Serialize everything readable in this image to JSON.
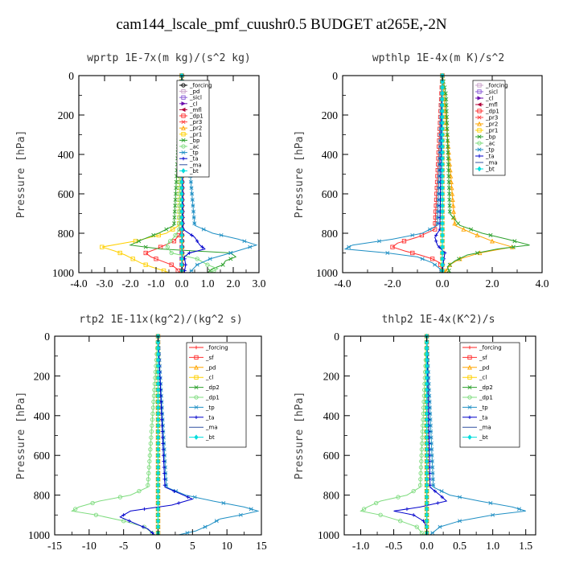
{
  "figure_title": "cam144_lscale_pmf_cuushr0.5  BUDGET at265E,-2N",
  "chart_data": [
    {
      "type": "line",
      "title": "wprtp  1E-7x(m kg)/(s^2 kg)",
      "ylabel": "Pressure [hPa]",
      "xlabel": "",
      "xlim": [
        -4.0,
        3.0
      ],
      "ylim": [
        1000,
        0
      ],
      "xticks": [
        -4.0,
        -3.0,
        -2.0,
        -1.0,
        0.0,
        1.0,
        2.0,
        3.0
      ],
      "xtick_labels": [
        "-4.0",
        "-3.0",
        "-2.0",
        "-1.0",
        "0.0",
        "1.0",
        "2.0",
        "3.0"
      ],
      "yticks": [
        0,
        200,
        400,
        600,
        800,
        1000
      ],
      "ytick_labels": [
        "0",
        "200",
        "400",
        "600",
        "800",
        "1000"
      ],
      "legend_position": "top-right",
      "series": [
        {
          "name": "_forcing",
          "color": "#000000",
          "marker": "o",
          "p": [
            0,
            1000
          ],
          "x": [
            0.02,
            0.02
          ]
        },
        {
          "name": "_pd",
          "color": "#c8a2c8",
          "marker": "s",
          "p": [
            0,
            1000
          ],
          "x": [
            0.0,
            0.0
          ]
        },
        {
          "name": "_sicl",
          "color": "#8a5bd6",
          "marker": "s",
          "p": [
            0,
            1000
          ],
          "x": [
            0.0,
            0.0
          ]
        },
        {
          "name": "_cl",
          "color": "#6a0dad",
          "marker": ">",
          "p": [
            0,
            1000
          ],
          "x": [
            0.0,
            0.0
          ]
        },
        {
          "name": "_mfl",
          "color": "#b0003a",
          "marker": "<",
          "p": [
            0,
            1000
          ],
          "x": [
            0.0,
            0.0
          ]
        },
        {
          "name": "_dp1",
          "color": "#ff3030",
          "marker": "s",
          "p": [
            0,
            760,
            800,
            840,
            880,
            900,
            920,
            940,
            960,
            980,
            1000
          ],
          "x": [
            0.0,
            0.0,
            -0.05,
            -0.3,
            -1.0,
            -1.4,
            -1.2,
            -0.8,
            -0.4,
            -0.2,
            -0.1
          ]
        },
        {
          "name": "_pr3",
          "color": "#ff4040",
          "marker": "x",
          "p": [
            0,
            1000
          ],
          "x": [
            0.0,
            0.0
          ]
        },
        {
          "name": "_pr2",
          "color": "#ffa500",
          "marker": "^",
          "p": [
            0,
            1000
          ],
          "x": [
            0.0,
            0.0
          ]
        },
        {
          "name": "_pr1",
          "color": "#ffd000",
          "marker": "s",
          "p": [
            0,
            760,
            800,
            840,
            870,
            890,
            910,
            930,
            950,
            970,
            990,
            1000
          ],
          "x": [
            0.0,
            -0.1,
            -0.6,
            -1.8,
            -3.1,
            -2.6,
            -2.2,
            -1.9,
            -1.6,
            -1.2,
            -0.7,
            -0.5
          ]
        },
        {
          "name": "_bp",
          "color": "#2ca02c",
          "marker": "x",
          "p": [
            0,
            760,
            800,
            830,
            860,
            880,
            900,
            920,
            940,
            960,
            980,
            1000
          ],
          "x": [
            0.0,
            -0.3,
            -0.9,
            -1.5,
            -2.0,
            -0.8,
            1.9,
            2.1,
            1.7,
            1.6,
            1.2,
            1.0
          ]
        },
        {
          "name": "_ac",
          "color": "#7fdc7f",
          "marker": "o",
          "p": [
            0,
            780,
            820,
            860,
            900,
            930,
            960,
            980,
            1000
          ],
          "x": [
            0.0,
            -0.1,
            -0.3,
            -0.6,
            -0.4,
            0.6,
            1.0,
            1.4,
            1.1
          ]
        },
        {
          "name": "_tp",
          "color": "#1f8fc4",
          "marker": "*",
          "p": [
            0,
            760,
            800,
            830,
            860,
            880,
            900,
            930,
            960,
            1000
          ],
          "x": [
            0.0,
            0.5,
            1.2,
            2.2,
            2.9,
            2.4,
            1.9,
            1.1,
            0.6,
            0.3
          ]
        },
        {
          "name": "_ta",
          "color": "#0000cc",
          "marker": "+",
          "p": [
            0,
            780,
            820,
            860,
            880,
            900,
            920,
            960,
            1000
          ],
          "x": [
            0.0,
            0.05,
            0.5,
            0.7,
            0.9,
            0.3,
            0.1,
            0.15,
            0.1
          ]
        },
        {
          "name": "_ma",
          "color": "#3050a0",
          "marker": "-",
          "p": [
            0,
            1000
          ],
          "x": [
            0.0,
            0.0
          ]
        },
        {
          "name": "_bt",
          "color": "#00dddd",
          "marker": "d",
          "p": [
            0,
            1000
          ],
          "x": [
            0.0,
            0.0
          ]
        }
      ]
    },
    {
      "type": "line",
      "title": "wpthlp  1E-4x(m K)/s^2",
      "ylabel": "Pressure [hPa]",
      "xlabel": "",
      "xlim": [
        -4.0,
        4.0
      ],
      "ylim": [
        1000,
        0
      ],
      "xticks": [
        -4.0,
        -2.0,
        0.0,
        2.0,
        4.0
      ],
      "xtick_labels": [
        "-4.0",
        "-2.0",
        "0.0",
        "2.0",
        "4.0"
      ],
      "yticks": [
        0,
        200,
        400,
        600,
        800,
        1000
      ],
      "ytick_labels": [
        "0",
        "200",
        "400",
        "600",
        "800",
        "1000"
      ],
      "legend_position": "top-right",
      "series": [
        {
          "name": "_forcing",
          "color": "#c8a2c8",
          "marker": "s",
          "p": [
            0,
            1000
          ],
          "x": [
            0.0,
            0.0
          ]
        },
        {
          "name": "_sicl",
          "color": "#8a5bd6",
          "marker": "s",
          "p": [
            0,
            1000
          ],
          "x": [
            0.0,
            0.0
          ]
        },
        {
          "name": "_cl",
          "color": "#6a0dad",
          "marker": ">",
          "p": [
            0,
            1000
          ],
          "x": [
            0.0,
            0.0
          ]
        },
        {
          "name": "_mfl",
          "color": "#b0003a",
          "marker": "<",
          "p": [
            0,
            1000
          ],
          "x": [
            0.0,
            0.0
          ]
        },
        {
          "name": "_dp1",
          "color": "#ff3030",
          "marker": "s",
          "p": [
            0,
            780,
            820,
            850,
            870,
            890,
            910,
            930,
            950,
            1000
          ],
          "x": [
            0.0,
            -0.3,
            -1.0,
            -1.8,
            -2.0,
            -1.5,
            -0.9,
            -0.4,
            -0.1,
            0.0
          ]
        },
        {
          "name": "_pr3",
          "color": "#ff4040",
          "marker": "x",
          "p": [
            0,
            1000
          ],
          "x": [
            0.0,
            0.0
          ]
        },
        {
          "name": "_pr2",
          "color": "#ffa500",
          "marker": "^",
          "p": [
            0,
            760,
            800,
            840,
            870,
            900,
            930,
            960,
            1000
          ],
          "x": [
            0.0,
            0.5,
            1.2,
            2.0,
            2.8,
            1.5,
            0.7,
            0.3,
            0.1
          ]
        },
        {
          "name": "_pr1",
          "color": "#ffd000",
          "marker": "s",
          "p": [
            0,
            1000
          ],
          "x": [
            0.0,
            0.0
          ]
        },
        {
          "name": "_bp",
          "color": "#2ca02c",
          "marker": "x",
          "p": [
            0,
            100,
            300,
            500,
            700,
            760,
            800,
            830,
            860,
            880,
            910,
            940,
            970,
            1000
          ],
          "x": [
            0.0,
            0.15,
            0.2,
            0.25,
            0.3,
            0.7,
            1.6,
            2.6,
            3.5,
            2.2,
            1.0,
            0.5,
            0.2,
            0.3
          ]
        },
        {
          "name": "_ac",
          "color": "#7fdc7f",
          "marker": "o",
          "p": [
            0,
            1000
          ],
          "x": [
            0.0,
            0.0
          ]
        },
        {
          "name": "_tp",
          "color": "#1f8fc4",
          "marker": "*",
          "p": [
            0,
            760,
            800,
            830,
            860,
            880,
            900,
            920,
            950,
            980,
            1000
          ],
          "x": [
            0.0,
            -0.2,
            -0.8,
            -2.0,
            -3.6,
            -3.9,
            -2.2,
            -1.0,
            -0.4,
            -0.1,
            0.0
          ]
        },
        {
          "name": "_ta",
          "color": "#0000cc",
          "marker": "+",
          "p": [
            0,
            780,
            820,
            860,
            900,
            940,
            1000
          ],
          "x": [
            0.0,
            -0.1,
            -0.3,
            -0.2,
            0.1,
            0.05,
            0.0
          ]
        },
        {
          "name": "_ma",
          "color": "#3050a0",
          "marker": "-",
          "p": [
            0,
            1000
          ],
          "x": [
            0.0,
            0.0
          ]
        },
        {
          "name": "_bt",
          "color": "#00dddd",
          "marker": "d",
          "p": [
            0,
            1000
          ],
          "x": [
            0.0,
            0.0
          ]
        }
      ]
    },
    {
      "type": "line",
      "title": "rtp2  1E-11x(kg^2)/(kg^2 s)",
      "ylabel": "Pressure [hPa]",
      "xlabel": "",
      "xlim": [
        -15,
        15
      ],
      "ylim": [
        1000,
        0
      ],
      "xticks": [
        -15,
        -10,
        -5,
        0,
        5,
        10,
        15
      ],
      "xtick_labels": [
        "-15",
        "-10",
        "-5",
        "0",
        "5",
        "10",
        "15"
      ],
      "yticks": [
        0,
        200,
        400,
        600,
        800,
        1000
      ],
      "ytick_labels": [
        "0",
        "200",
        "400",
        "600",
        "800",
        "1000"
      ],
      "legend_position": "top-right",
      "series": [
        {
          "name": "_forcing",
          "color": "#ff2020",
          "marker": "+",
          "p": [
            0,
            1000
          ],
          "x": [
            0.0,
            0.0
          ]
        },
        {
          "name": "_sf",
          "color": "#ff3030",
          "marker": "s",
          "p": [
            0,
            1000
          ],
          "x": [
            0.0,
            0.0
          ]
        },
        {
          "name": "_pd",
          "color": "#ffa500",
          "marker": "^",
          "p": [
            0,
            1000
          ],
          "x": [
            0.0,
            0.0
          ]
        },
        {
          "name": "_cl",
          "color": "#ffd000",
          "marker": "s",
          "p": [
            0,
            1000
          ],
          "x": [
            0.0,
            0.0
          ]
        },
        {
          "name": "_dp2",
          "color": "#2ca02c",
          "marker": "x",
          "p": [
            0,
            1000
          ],
          "x": [
            0.0,
            0.0
          ]
        },
        {
          "name": "_dp1",
          "color": "#7fdc7f",
          "marker": "o",
          "p": [
            0,
            760,
            800,
            830,
            860,
            880,
            900,
            930,
            960,
            1000
          ],
          "x": [
            0.0,
            -1.5,
            -4.0,
            -8.5,
            -11.5,
            -12.5,
            -9.0,
            -5.0,
            -2.0,
            -0.5
          ]
        },
        {
          "name": "_tp",
          "color": "#1f8fc4",
          "marker": "*",
          "p": [
            0,
            760,
            800,
            830,
            860,
            880,
            900,
            920,
            950,
            980,
            1000
          ],
          "x": [
            0.0,
            1.2,
            4.0,
            8.0,
            12.5,
            14.5,
            12.0,
            9.0,
            7.5,
            5.5,
            3.0
          ]
        },
        {
          "name": "_ta",
          "color": "#0000cc",
          "marker": "+",
          "p": [
            0,
            760,
            790,
            820,
            850,
            880,
            910,
            940,
            970,
            1000
          ],
          "x": [
            0.0,
            1.0,
            3.0,
            5.0,
            2.0,
            -4.0,
            -5.5,
            -3.5,
            -1.5,
            -0.5
          ]
        },
        {
          "name": "_ma",
          "color": "#3050a0",
          "marker": "-",
          "p": [
            0,
            1000
          ],
          "x": [
            0.0,
            0.0
          ]
        },
        {
          "name": "_bt",
          "color": "#00dddd",
          "marker": "d",
          "p": [
            0,
            1000
          ],
          "x": [
            0.0,
            0.0
          ]
        }
      ]
    },
    {
      "type": "line",
      "title": "thlp2  1E-4x(K^2)/s",
      "ylabel": "Pressure [hPa]",
      "xlabel": "",
      "xlim": [
        -1.25,
        1.65
      ],
      "ylim": [
        1000,
        0
      ],
      "xticks": [
        -1.0,
        -0.5,
        0.0,
        0.5,
        1.0,
        1.5
      ],
      "xtick_labels": [
        "-1.0",
        "-0.5",
        "0.0",
        "0.5",
        "1.0",
        "1.5"
      ],
      "yticks": [
        0,
        200,
        400,
        600,
        800,
        1000
      ],
      "ytick_labels": [
        "0",
        "200",
        "400",
        "600",
        "800",
        "1000"
      ],
      "legend_position": "top-right",
      "series": [
        {
          "name": "_forcing",
          "color": "#ff2020",
          "marker": "+",
          "p": [
            0,
            1000
          ],
          "x": [
            0.0,
            0.0
          ]
        },
        {
          "name": "_sf",
          "color": "#ff3030",
          "marker": "s",
          "p": [
            0,
            1000
          ],
          "x": [
            0.0,
            0.0
          ]
        },
        {
          "name": "_pd",
          "color": "#ffa500",
          "marker": "^",
          "p": [
            0,
            1000
          ],
          "x": [
            0.0,
            0.0
          ]
        },
        {
          "name": "_cl",
          "color": "#ffd000",
          "marker": "s",
          "p": [
            0,
            1000
          ],
          "x": [
            0.0,
            0.0
          ]
        },
        {
          "name": "_dp2",
          "color": "#2ca02c",
          "marker": "x",
          "p": [
            0,
            1000
          ],
          "x": [
            0.0,
            0.0
          ]
        },
        {
          "name": "_dp1",
          "color": "#7fdc7f",
          "marker": "o",
          "p": [
            0,
            760,
            800,
            830,
            860,
            880,
            900,
            930,
            960,
            1000
          ],
          "x": [
            0.0,
            -0.1,
            -0.3,
            -0.7,
            -0.9,
            -1.0,
            -0.7,
            -0.4,
            -0.15,
            -0.05
          ]
        },
        {
          "name": "_tp",
          "color": "#1f8fc4",
          "marker": "*",
          "p": [
            0,
            760,
            800,
            830,
            860,
            880,
            900,
            930,
            960,
            1000
          ],
          "x": [
            0.0,
            0.1,
            0.35,
            0.8,
            1.3,
            1.5,
            1.0,
            0.5,
            0.2,
            0.05
          ]
        },
        {
          "name": "_ta",
          "color": "#0000cc",
          "marker": "+",
          "p": [
            0,
            760,
            800,
            830,
            860,
            880,
            900,
            930,
            960,
            1000
          ],
          "x": [
            0.0,
            0.05,
            0.2,
            0.3,
            -0.1,
            -0.5,
            -0.2,
            -0.05,
            0.0,
            0.0
          ]
        },
        {
          "name": "_ma",
          "color": "#3050a0",
          "marker": "-",
          "p": [
            0,
            1000
          ],
          "x": [
            0.0,
            0.0
          ]
        },
        {
          "name": "_bt",
          "color": "#00dddd",
          "marker": "d",
          "p": [
            0,
            1000
          ],
          "x": [
            0.0,
            0.0
          ]
        }
      ]
    }
  ]
}
